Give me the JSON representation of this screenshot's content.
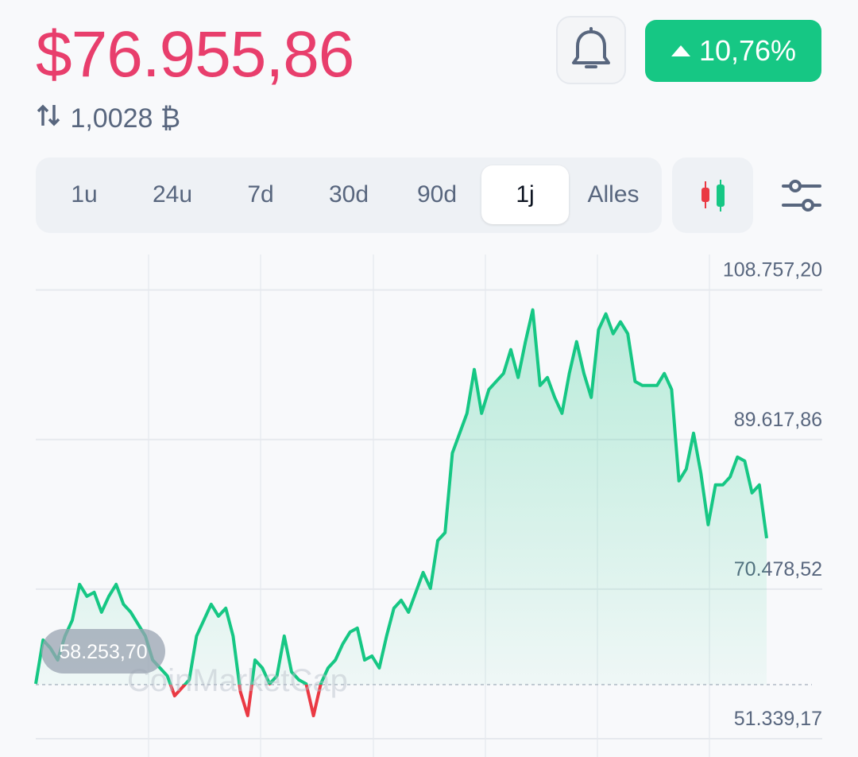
{
  "header": {
    "price": "$76.955,86",
    "btc_amount": "1,0028 ₿",
    "change": "10,76%"
  },
  "timeframes": [
    "1u",
    "24u",
    "7d",
    "30d",
    "90d",
    "1j",
    "Alles"
  ],
  "selected_timeframe": "1j",
  "watermark": "CoinMarketCap",
  "chart_data": {
    "type": "line",
    "color": "#16c784",
    "negative_color": "#ea3943",
    "baseline": {
      "value": 58253.7,
      "label": "58.253,70"
    },
    "ylim": [
      49000,
      113300
    ],
    "yticks": [
      {
        "value": 51339.17,
        "label": "51.339,17"
      },
      {
        "value": 70478.52,
        "label": "70.478,52"
      },
      {
        "value": 89617.86,
        "label": "89.617,86"
      },
      {
        "value": 108757.2,
        "label": "108.757,20"
      }
    ],
    "grid": true,
    "values": [
      58363,
      63962,
      62944,
      61417,
      64471,
      66507,
      71088,
      69561,
      70070,
      67525,
      69561,
      71088,
      68543,
      67525,
      65998,
      64471,
      61417,
      60399,
      59381,
      56836,
      57854,
      58872,
      64471,
      66507,
      68543,
      67016,
      68034,
      64471,
      57345,
      54291,
      61417,
      60399,
      58363,
      59381,
      64471,
      59890,
      58872,
      58363,
      54291,
      58363,
      60399,
      61417,
      63453,
      64980,
      65489,
      61417,
      61926,
      60399,
      64471,
      68034,
      69052,
      67525,
      70070,
      72615,
      70579,
      76687,
      77705,
      87885,
      90430,
      92975,
      98574,
      92975,
      96029,
      97047,
      98065,
      101119,
      97556,
      102137,
      106209,
      96538,
      97556,
      95011,
      92975,
      98065,
      102137,
      98065,
      95011,
      103664,
      105700,
      103155,
      104682,
      103155,
      97047,
      96538,
      96538,
      96538,
      98065,
      96029,
      84322,
      85849,
      90430,
      85340,
      78723,
      83813,
      83813,
      84831,
      87376,
      86867,
      82795,
      83813,
      76993
    ]
  }
}
